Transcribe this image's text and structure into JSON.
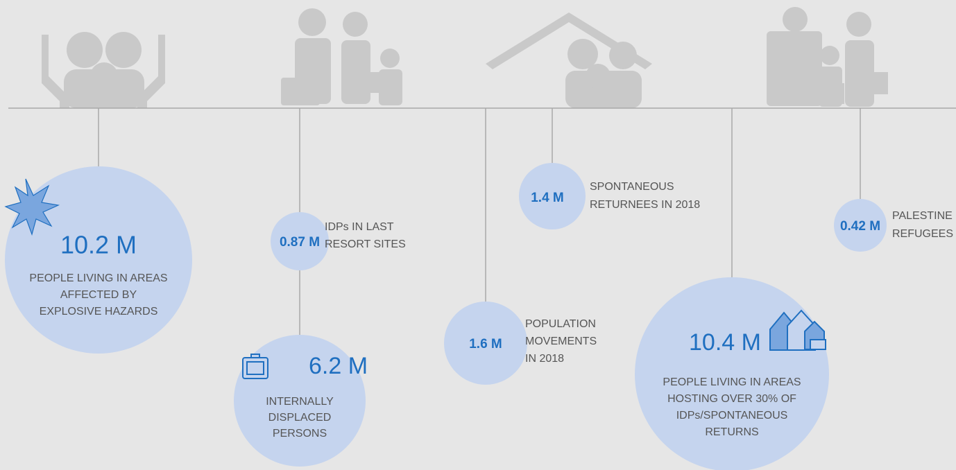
{
  "items": [
    {
      "value": "10.2 M",
      "label": [
        "PEOPLE LIVING IN AREAS",
        "AFFECTED BY",
        "EXPLOSIVE HAZARDS"
      ]
    },
    {
      "value": "0.87 M",
      "label": [
        "IDPs IN LAST",
        "RESORT SITES"
      ]
    },
    {
      "value": "6.2 M",
      "label": [
        "INTERNALLY",
        "DISPLACED",
        "PERSONS"
      ]
    },
    {
      "value": "1.6 M",
      "label": [
        "POPULATION",
        "MOVEMENTS",
        "IN 2018"
      ]
    },
    {
      "value": "1.4 M",
      "label": [
        "SPONTANEOUS",
        "RETURNEES IN 2018"
      ]
    },
    {
      "value": "10.4 M",
      "label": [
        "PEOPLE LIVING IN AREAS",
        "HOSTING OVER 30% OF",
        "IDPs/SPONTANEOUS",
        "RETURNS"
      ]
    },
    {
      "value": "0.42 M",
      "label": [
        "PALESTINE",
        "REFUGEES"
      ]
    }
  ]
}
